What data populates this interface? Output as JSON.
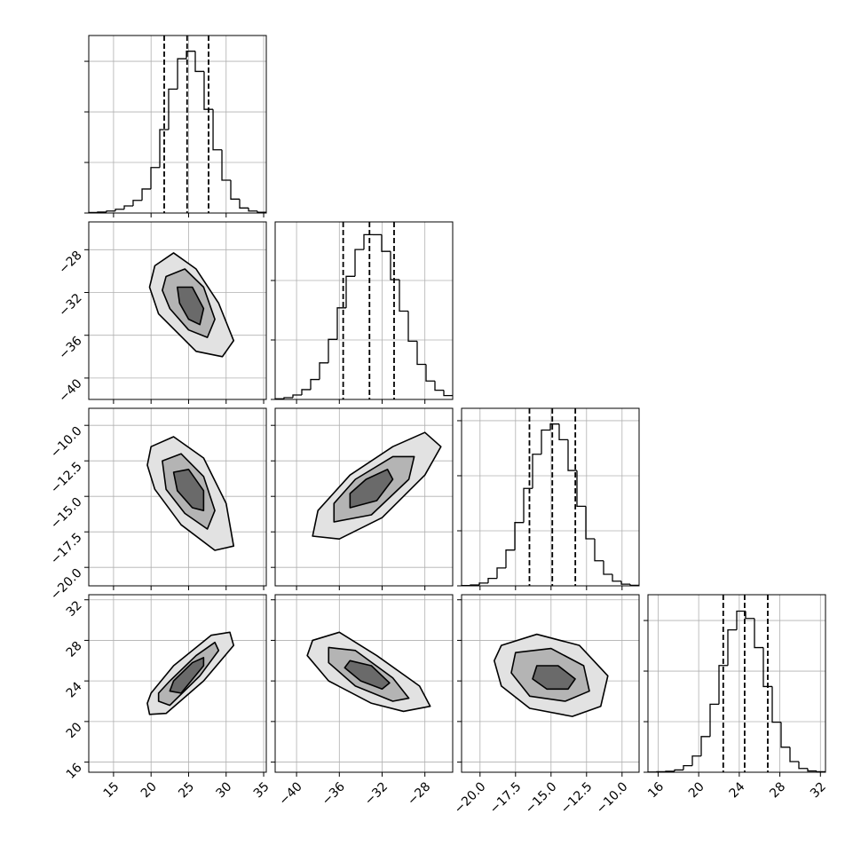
{
  "chart_data": {
    "type": "corner",
    "line_color": "#000000",
    "grid_color": "#b0b0b0",
    "contour_fills": [
      "#e2e2e2",
      "#b4b4b4",
      "#6a6a6a"
    ],
    "parameters": [
      {
        "lim": [
          11.7,
          35.35
        ],
        "ticks": [
          15,
          20,
          25,
          30,
          35
        ],
        "quantiles": [
          21.75,
          24.8,
          27.66
        ],
        "hist": {
          "bins": [
            11.7,
            12.88,
            14.07,
            15.25,
            16.43,
            17.61,
            18.8,
            19.98,
            21.16,
            22.34,
            23.53,
            24.71,
            25.89,
            27.07,
            28.26,
            29.44,
            30.62,
            31.8,
            32.99,
            34.17,
            35.35
          ],
          "counts": [
            2,
            4,
            8,
            15,
            28,
            50,
            95,
            180,
            330,
            490,
            610,
            640,
            560,
            410,
            250,
            130,
            55,
            20,
            8,
            3
          ],
          "ylim": [
            0,
            702
          ],
          "yticks": [
            0,
            200,
            400,
            600
          ]
        },
        "joint": []
      },
      {
        "lim": [
          -42,
          -25.4
        ],
        "ticks": [
          {
            "value": -40,
            "label": "−40"
          },
          {
            "value": -36,
            "label": "−36"
          },
          {
            "value": -32,
            "label": "−32"
          },
          {
            "value": -28,
            "label": "−28"
          }
        ],
        "quantiles": [
          -35.64,
          -33.18,
          -30.88
        ],
        "hist": {
          "bins": [
            -42,
            -41.17,
            -40.34,
            -39.51,
            -38.68,
            -37.85,
            -37.02,
            -36.19,
            -35.36,
            -34.53,
            -33.7,
            -32.87,
            -32.04,
            -31.21,
            -30.38,
            -29.55,
            -28.72,
            -27.89,
            -27.06,
            -26.23,
            -25.4
          ],
          "counts": [
            2,
            6,
            15,
            33,
            67,
            123,
            202,
            308,
            414,
            504,
            554,
            554,
            498,
            403,
            297,
            196,
            118,
            62,
            31,
            13
          ],
          "ylim": [
            0,
            597
          ],
          "yticks": [
            0,
            200,
            400
          ]
        },
        "joint": [
          [
            [
              [
                20.5,
                -29.5
              ],
              [
                23,
                -28.3
              ],
              [
                26,
                -29.8
              ],
              [
                29,
                -33
              ],
              [
                31,
                -36.5
              ],
              [
                29.5,
                -38
              ],
              [
                26,
                -37.5
              ],
              [
                21,
                -34
              ],
              [
                19.8,
                -31.5
              ]
            ],
            [
              [
                22,
                -30.5
              ],
              [
                24.5,
                -29.8
              ],
              [
                27,
                -31.5
              ],
              [
                28.5,
                -34.5
              ],
              [
                27.5,
                -36.2
              ],
              [
                25,
                -35.5
              ],
              [
                22.5,
                -33.5
              ],
              [
                21.5,
                -31.8
              ]
            ],
            [
              [
                23.5,
                -31.5
              ],
              [
                25.5,
                -31.5
              ],
              [
                27,
                -33.5
              ],
              [
                26.5,
                -35
              ],
              [
                25,
                -34.5
              ],
              [
                23.8,
                -33
              ]
            ]
          ]
        ]
      },
      {
        "lim": [
          -21.3,
          -8.8
        ],
        "ticks": [
          {
            "value": -20,
            "label": "−20.0"
          },
          {
            "value": -17.5,
            "label": "−17.5"
          },
          {
            "value": -15,
            "label": "−15.0"
          },
          {
            "value": -12.5,
            "label": "−12.5"
          },
          {
            "value": -10,
            "label": "−10.0"
          }
        ],
        "quantiles": [
          -16.52,
          -14.91,
          -13.29
        ],
        "hist": {
          "bins": [
            -21.3,
            -20.675,
            -20.05,
            -19.425,
            -18.8,
            -18.175,
            -17.55,
            -16.925,
            -16.3,
            -15.675,
            -15.05,
            -14.425,
            -13.8,
            -13.175,
            -12.55,
            -11.925,
            -11.3,
            -10.675,
            -10.05,
            -9.425,
            -8.8
          ],
          "counts": [
            1,
            3,
            10,
            27,
            65,
            130,
            230,
            354,
            478,
            566,
            588,
            531,
            419,
            289,
            171,
            91,
            42,
            17,
            6,
            2
          ],
          "ylim": [
            0,
            645
          ],
          "yticks": [
            0,
            200,
            400,
            600
          ]
        },
        "joint": [
          [
            [
              [
                20,
                -11.5
              ],
              [
                23,
                -10.8
              ],
              [
                27,
                -12.3
              ],
              [
                30,
                -15.5
              ],
              [
                31,
                -18.5
              ],
              [
                28.5,
                -18.8
              ],
              [
                24,
                -17
              ],
              [
                20.5,
                -14.5
              ],
              [
                19.5,
                -12.8
              ]
            ],
            [
              [
                21.5,
                -12.5
              ],
              [
                24,
                -12
              ],
              [
                27,
                -13.6
              ],
              [
                28.5,
                -16
              ],
              [
                27.5,
                -17.3
              ],
              [
                24.5,
                -16.2
              ],
              [
                22,
                -14.5
              ]
            ],
            [
              [
                23,
                -13.3
              ],
              [
                25,
                -13.1
              ],
              [
                27,
                -14.6
              ],
              [
                27,
                -16
              ],
              [
                25.5,
                -15.8
              ],
              [
                23.5,
                -14.6
              ]
            ]
          ],
          [
            [
              [
                -38.5,
                -17.8
              ],
              [
                -36,
                -18
              ],
              [
                -32,
                -16.5
              ],
              [
                -28,
                -13.5
              ],
              [
                -26.5,
                -11.5
              ],
              [
                -28,
                -10.5
              ],
              [
                -31,
                -11.5
              ],
              [
                -35,
                -13.5
              ],
              [
                -38,
                -16
              ]
            ],
            [
              [
                -36.5,
                -16.8
              ],
              [
                -33,
                -16.3
              ],
              [
                -29.5,
                -13.8
              ],
              [
                -29,
                -12.2
              ],
              [
                -31,
                -12.2
              ],
              [
                -34.5,
                -13.8
              ],
              [
                -36.5,
                -15.5
              ]
            ],
            [
              [
                -35,
                -15.8
              ],
              [
                -32.5,
                -15.3
              ],
              [
                -31,
                -13.8
              ],
              [
                -31.5,
                -13.1
              ],
              [
                -33.5,
                -13.8
              ],
              [
                -35,
                -14.8
              ]
            ]
          ]
        ]
      },
      {
        "lim": [
          15,
          32.5
        ],
        "ticks": [
          16,
          20,
          24,
          28,
          32
        ],
        "quantiles": [
          22.42,
          24.53,
          26.81
        ],
        "hist": {
          "bins": [
            15,
            15.875,
            16.75,
            17.625,
            18.5,
            19.375,
            20.25,
            21.125,
            22,
            22.875,
            23.75,
            24.625,
            25.5,
            26.375,
            27.25,
            28.125,
            29,
            29.875,
            30.75,
            31.625,
            32.5
          ],
          "counts": [
            1,
            2,
            4,
            9,
            26,
            64,
            141,
            269,
            422,
            563,
            637,
            608,
            493,
            339,
            198,
            99,
            42,
            15,
            5,
            2
          ],
          "ylim": [
            0,
            702
          ],
          "yticks": [
            0,
            200,
            400,
            600
          ]
        },
        "joint": [
          [
            [
              [
                19.5,
                21.8
              ],
              [
                19.8,
                20.7
              ],
              [
                22,
                20.8
              ],
              [
                27,
                24
              ],
              [
                31,
                27.5
              ],
              [
                30.5,
                28.8
              ],
              [
                28,
                28.5
              ],
              [
                23,
                25.5
              ],
              [
                20,
                22.8
              ]
            ],
            [
              [
                21,
                22
              ],
              [
                22.5,
                21.6
              ],
              [
                26.5,
                24.5
              ],
              [
                29,
                27
              ],
              [
                28.5,
                27.8
              ],
              [
                26,
                26.5
              ],
              [
                22.5,
                24
              ],
              [
                21,
                22.8
              ]
            ],
            [
              [
                22.5,
                23
              ],
              [
                24,
                22.8
              ],
              [
                27,
                25.5
              ],
              [
                27,
                26.3
              ],
              [
                25.5,
                25.8
              ],
              [
                23,
                24
              ]
            ]
          ],
          [
            [
              [
                -38.5,
                28
              ],
              [
                -36,
                28.8
              ],
              [
                -32.5,
                26.5
              ],
              [
                -28.5,
                23.5
              ],
              [
                -27.5,
                21.5
              ],
              [
                -30,
                21
              ],
              [
                -33,
                21.8
              ],
              [
                -37,
                24
              ],
              [
                -39,
                26.5
              ]
            ],
            [
              [
                -37,
                27.3
              ],
              [
                -34.5,
                27
              ],
              [
                -31,
                24.3
              ],
              [
                -29.5,
                22.3
              ],
              [
                -31,
                22
              ],
              [
                -34.5,
                23.5
              ],
              [
                -37,
                25.8
              ]
            ],
            [
              [
                -35,
                26
              ],
              [
                -33,
                25.5
              ],
              [
                -31.3,
                23.8
              ],
              [
                -32,
                23.2
              ],
              [
                -34,
                24
              ],
              [
                -35.5,
                25.3
              ]
            ]
          ],
          [
            [
              [
                -18.5,
                27.5
              ],
              [
                -16,
                28.6
              ],
              [
                -13,
                27.5
              ],
              [
                -11,
                24.5
              ],
              [
                -11.5,
                21.5
              ],
              [
                -13.5,
                20.5
              ],
              [
                -16.5,
                21.3
              ],
              [
                -18.5,
                23.5
              ],
              [
                -19,
                26
              ]
            ],
            [
              [
                -17.5,
                26.8
              ],
              [
                -15,
                27.2
              ],
              [
                -12.7,
                25.5
              ],
              [
                -12.3,
                23
              ],
              [
                -14,
                22
              ],
              [
                -16.5,
                22.5
              ],
              [
                -17.8,
                24.8
              ]
            ],
            [
              [
                -16,
                25.5
              ],
              [
                -14.5,
                25.5
              ],
              [
                -13.3,
                24.2
              ],
              [
                -13.8,
                23.2
              ],
              [
                -15.3,
                23.2
              ],
              [
                -16.3,
                24.2
              ]
            ]
          ]
        ]
      }
    ]
  }
}
